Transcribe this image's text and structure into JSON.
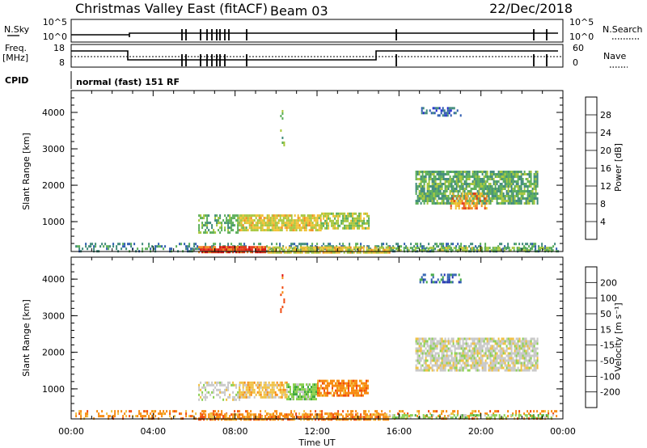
{
  "header": {
    "title": "Christmas Valley East (fitACF)",
    "beam": "Beam 03",
    "date": "22/Dec/2018"
  },
  "sky": {
    "label": "N.Sky",
    "left_ticks": [
      "10^5",
      "10^0"
    ],
    "right_ticks": [
      "10^5",
      "10^0"
    ],
    "right_label": "N.Search"
  },
  "freq": {
    "label_top": "Freq.",
    "label_bottom": "[MHz]",
    "left_ticks": [
      "18",
      "8"
    ],
    "right_ticks": [
      "60",
      "0"
    ],
    "right_label": "Nave"
  },
  "cpid": {
    "label": "CPID",
    "text": "normal (fast) 151 RF"
  },
  "colors": {
    "power": [
      "#1f25d0",
      "#2d5bb0",
      "#3f8a7a",
      "#5aae58",
      "#a6c63a",
      "#f0c030",
      "#f08a20",
      "#e43a18",
      "#d81010"
    ],
    "velocity": [
      "#e01010",
      "#f04a10",
      "#f78a10",
      "#f0c040",
      "#c8c8c8",
      "#8ad050",
      "#40a840",
      "#2f60b0",
      "#2030b0"
    ]
  },
  "chart_data": [
    {
      "type": "heatmap",
      "panel": "power",
      "ylabel": "Slant Range [km]",
      "xlabel": "",
      "xlim": [
        0,
        24
      ],
      "ylim": [
        180,
        4600
      ],
      "yticks": [
        "1000",
        "2000",
        "3000",
        "4000"
      ],
      "colorbar": {
        "label": "Power [dB]",
        "range": [
          0,
          32
        ],
        "ticks": [
          "4",
          "8",
          "12",
          "16",
          "20",
          "24",
          "28"
        ]
      },
      "regions": [
        {
          "t": [
            0.2,
            23.8
          ],
          "r": [
            180,
            420
          ],
          "v": 9,
          "d": 0.35
        },
        {
          "t": [
            6.2,
            9.5
          ],
          "r": [
            180,
            330
          ],
          "v": 27,
          "d": 0.9
        },
        {
          "t": [
            9.5,
            15.5
          ],
          "r": [
            180,
            320
          ],
          "v": 18,
          "d": 0.8
        },
        {
          "t": [
            15.5,
            23.5
          ],
          "r": [
            180,
            310
          ],
          "v": 14,
          "d": 0.7
        },
        {
          "t": [
            6.2,
            8.2
          ],
          "r": [
            700,
            1200
          ],
          "v": 12,
          "d": 0.55
        },
        {
          "t": [
            8.2,
            12.2
          ],
          "r": [
            750,
            1200
          ],
          "v": 18,
          "d": 0.85
        },
        {
          "t": [
            12.2,
            14.5
          ],
          "r": [
            850,
            1250
          ],
          "v": 16,
          "d": 0.75
        },
        {
          "t": [
            10.2,
            10.4
          ],
          "r": [
            3100,
            4200
          ],
          "v": 14,
          "d": 0.3
        },
        {
          "t": [
            16.8,
            22.8
          ],
          "r": [
            1500,
            2400
          ],
          "v": 12,
          "d": 0.8
        },
        {
          "t": [
            18.5,
            20.3
          ],
          "r": [
            1400,
            1800
          ],
          "v": 22,
          "d": 0.55
        },
        {
          "t": [
            17.0,
            19.0
          ],
          "r": [
            3900,
            4150
          ],
          "v": 6,
          "d": 0.4
        }
      ]
    },
    {
      "type": "heatmap",
      "panel": "velocity",
      "ylabel": "Slant Range [km]",
      "xlabel": "Time UT",
      "xlim": [
        0,
        24
      ],
      "ylim": [
        180,
        4600
      ],
      "xticks": [
        "00:00",
        "04:00",
        "08:00",
        "12:00",
        "16:00",
        "20:00",
        "00:00"
      ],
      "yticks": [
        "1000",
        "2000",
        "3000",
        "4000"
      ],
      "colorbar": {
        "label": "Velocity [m s⁻¹]",
        "ticks": [
          "200",
          "100",
          "50",
          "15",
          "-15",
          "-50",
          "-100",
          "-200"
        ]
      },
      "regions": [
        {
          "t": [
            0.2,
            23.8
          ],
          "r": [
            180,
            420
          ],
          "v": 2,
          "d": 0.3
        },
        {
          "t": [
            6.2,
            15.5
          ],
          "r": [
            180,
            330
          ],
          "v": 2,
          "d": 0.7
        },
        {
          "t": [
            15.5,
            23.5
          ],
          "r": [
            180,
            310
          ],
          "v": 5,
          "d": 0.45
        },
        {
          "t": [
            6.2,
            8.2
          ],
          "r": [
            700,
            1200
          ],
          "v": 4,
          "d": 0.5
        },
        {
          "t": [
            8.2,
            10.5
          ],
          "r": [
            750,
            1200
          ],
          "v": 3,
          "d": 0.75
        },
        {
          "t": [
            10.5,
            12.0
          ],
          "r": [
            750,
            1150
          ],
          "v": 5,
          "d": 0.8
        },
        {
          "t": [
            12.0,
            14.5
          ],
          "r": [
            850,
            1250
          ],
          "v": 2,
          "d": 0.75
        },
        {
          "t": [
            10.2,
            10.4
          ],
          "r": [
            3100,
            4200
          ],
          "v": 1,
          "d": 0.25
        },
        {
          "t": [
            16.8,
            22.8
          ],
          "r": [
            1500,
            2400
          ],
          "v": 4,
          "d": 0.8
        },
        {
          "t": [
            17.0,
            19.0
          ],
          "r": [
            3900,
            4150
          ],
          "v": 7,
          "d": 0.4
        }
      ]
    }
  ]
}
